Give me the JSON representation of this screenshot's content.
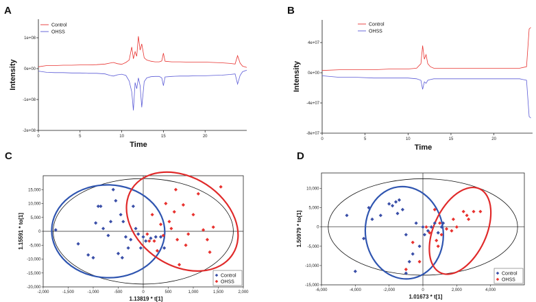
{
  "chart_data": [
    {
      "panel": "A",
      "type": "line",
      "xlabel": "Time",
      "ylabel": "Intensity",
      "xlim": [
        0,
        25
      ],
      "ylim": [
        -200000000,
        160000000
      ],
      "xticks": [
        0,
        5,
        10,
        15,
        20
      ],
      "xtick_labels": [
        "0",
        "5",
        "10",
        "15",
        "20"
      ],
      "yticks": [
        -200000000,
        -100000000,
        0,
        100000000
      ],
      "ytick_labels": [
        "-2e+08",
        "-1e+08",
        "0e+00",
        "1e+08"
      ],
      "legend": "top-left",
      "series": [
        {
          "name": "Control",
          "color": "#e8322f",
          "x": [
            0,
            1,
            2,
            3,
            4,
            5,
            6,
            7,
            8,
            8.6,
            9,
            9.5,
            10,
            10.5,
            10.9,
            11.2,
            11.4,
            11.6,
            11.8,
            12.0,
            12.2,
            12.4,
            12.7,
            13,
            13.5,
            14,
            14.5,
            14.8,
            15.0,
            15.2,
            16,
            17,
            18,
            19,
            20,
            21,
            22,
            23,
            23.6,
            23.9,
            24.2,
            24.5,
            25
          ],
          "y": [
            6000000,
            10000000,
            10000000,
            11000000,
            11000000,
            12000000,
            12000000,
            13000000,
            15000000,
            18000000,
            20000000,
            16000000,
            14000000,
            20000000,
            28000000,
            70000000,
            32000000,
            55000000,
            40000000,
            105000000,
            60000000,
            80000000,
            35000000,
            28000000,
            24000000,
            22000000,
            22000000,
            25000000,
            50000000,
            24000000,
            22000000,
            22000000,
            21000000,
            21000000,
            21000000,
            20000000,
            19000000,
            17000000,
            15000000,
            42000000,
            18000000,
            8000000,
            4000000
          ]
        },
        {
          "name": "OHSS",
          "color": "#5a5ad6",
          "x": [
            0,
            1,
            2,
            3,
            4,
            5,
            6,
            7,
            8,
            8.6,
            9,
            9.5,
            10,
            10.5,
            10.9,
            11.2,
            11.4,
            11.6,
            11.8,
            12.0,
            12.2,
            12.4,
            12.7,
            13,
            13.5,
            14,
            14.5,
            14.8,
            15.0,
            15.2,
            16,
            17,
            18,
            19,
            20,
            21,
            22,
            23,
            23.6,
            23.9,
            24.2,
            24.5,
            25
          ],
          "y": [
            -8000000,
            -12000000,
            -13000000,
            -13000000,
            -14000000,
            -14000000,
            -15000000,
            -15000000,
            -17000000,
            -22000000,
            -24000000,
            -20000000,
            -18000000,
            -22000000,
            -40000000,
            -75000000,
            -135000000,
            -45000000,
            -65000000,
            -30000000,
            -55000000,
            -125000000,
            -42000000,
            -30000000,
            -26000000,
            -25000000,
            -25000000,
            -30000000,
            -55000000,
            -27000000,
            -25000000,
            -24000000,
            -24000000,
            -23000000,
            -23000000,
            -22000000,
            -21000000,
            -19000000,
            -17000000,
            -50000000,
            -22000000,
            -10000000,
            -5000000
          ]
        }
      ]
    },
    {
      "panel": "B",
      "type": "line",
      "xlabel": "Time",
      "ylabel": "Intensity",
      "xlim": [
        0,
        24.5
      ],
      "ylim": [
        -80000000,
        70000000
      ],
      "xticks": [
        0,
        5,
        10,
        15,
        20
      ],
      "xtick_labels": [
        "0",
        "5",
        "10",
        "15",
        "20"
      ],
      "yticks": [
        -80000000,
        -40000000,
        0,
        40000000
      ],
      "ytick_labels": [
        "-8e+07",
        "-4e+07",
        "0e+00",
        "4e+07"
      ],
      "legend": "top-right",
      "series": [
        {
          "name": "Control",
          "color": "#e8322f",
          "x": [
            0,
            2,
            4,
            6,
            8,
            10,
            11,
            11.5,
            11.7,
            11.9,
            12.1,
            12.3,
            12.6,
            13,
            15,
            17,
            19,
            21,
            23,
            23.8,
            24.1,
            24.3
          ],
          "y": [
            3000000,
            4000000,
            4000000,
            4000000,
            5000000,
            5000000,
            6000000,
            12000000,
            36000000,
            18000000,
            24000000,
            12000000,
            8000000,
            6000000,
            6000000,
            6000000,
            6000000,
            6000000,
            6000000,
            8000000,
            58000000,
            60000000
          ],
          "legend_hint": ""
        },
        {
          "name": "OHSS",
          "color": "#5a5ad6",
          "x": [
            0,
            2,
            4,
            6,
            8,
            10,
            11,
            11.5,
            11.7,
            11.9,
            12.1,
            12.3,
            12.6,
            13,
            15,
            17,
            19,
            21,
            23,
            23.8,
            24.1,
            24.3
          ],
          "y": [
            -4000000,
            -6000000,
            -6000000,
            -7000000,
            -7000000,
            -7000000,
            -8000000,
            -10000000,
            -22000000,
            -12000000,
            -14000000,
            -10000000,
            -9000000,
            -8000000,
            -8000000,
            -8000000,
            -8000000,
            -8000000,
            -8000000,
            -10000000,
            -58000000,
            -60000000
          ]
        }
      ]
    },
    {
      "panel": "C",
      "type": "scatter",
      "xlabel": "1.13819 * t[1]",
      "ylabel": "1.15591 * to[1]",
      "xlim": [
        -2000,
        2000
      ],
      "ylim": [
        -20000,
        20000
      ],
      "xticks": [
        -2000,
        -1500,
        -1000,
        -500,
        0,
        500,
        1000,
        1500,
        2000
      ],
      "xtick_labels": [
        "-2,000",
        "-1,500",
        "-1,000",
        "-500",
        "0",
        "500",
        "1,000",
        "1,500",
        "2,000"
      ],
      "yticks": [
        -20000,
        -15000,
        -10000,
        -5000,
        0,
        5000,
        10000,
        15000
      ],
      "ytick_labels": [
        "-20,000",
        "-15,000",
        "-10,000",
        "-5,000",
        "0",
        "5,000",
        "10,000",
        "15,000"
      ],
      "legend": "bottom-right",
      "series": [
        {
          "name": "Control",
          "color": "#3a4fa8",
          "marker": "diamond",
          "points": [
            [
              -1750,
              500
            ],
            [
              -1300,
              -4500
            ],
            [
              -1100,
              -8500
            ],
            [
              -1000,
              -9500
            ],
            [
              -950,
              3000
            ],
            [
              -900,
              9000
            ],
            [
              -850,
              9000
            ],
            [
              -800,
              1000
            ],
            [
              -700,
              -1500
            ],
            [
              -650,
              3500
            ],
            [
              -600,
              15000
            ],
            [
              -550,
              11000
            ],
            [
              -500,
              -8000
            ],
            [
              -450,
              6000
            ],
            [
              -400,
              3500
            ],
            [
              -350,
              -2000
            ],
            [
              -300,
              -6000
            ],
            [
              -250,
              -3000
            ],
            [
              -200,
              9000
            ],
            [
              -150,
              1000
            ],
            [
              -100,
              -1000
            ],
            [
              -50,
              -6000
            ],
            [
              0,
              -2000
            ],
            [
              50,
              -3500
            ],
            [
              150,
              -2500
            ],
            [
              250,
              -2000
            ],
            [
              350,
              -2000
            ],
            [
              420,
              -6000
            ],
            [
              -420,
              -9500
            ]
          ]
        },
        {
          "name": "OHSS",
          "color": "#e8322f",
          "marker": "diamond",
          "points": [
            [
              80,
              -1000
            ],
            [
              120,
              -3500
            ],
            [
              180,
              6000
            ],
            [
              220,
              -3500
            ],
            [
              280,
              -7000
            ],
            [
              350,
              2500
            ],
            [
              400,
              -1500
            ],
            [
              450,
              10000
            ],
            [
              520,
              3500
            ],
            [
              560,
              1000
            ],
            [
              620,
              7000
            ],
            [
              680,
              -3000
            ],
            [
              720,
              -12000
            ],
            [
              800,
              9500
            ],
            [
              850,
              -5000
            ],
            [
              900,
              -1000
            ],
            [
              1000,
              6000
            ],
            [
              1100,
              13500
            ],
            [
              1200,
              500
            ],
            [
              1280,
              -3000
            ],
            [
              1330,
              -7500
            ],
            [
              1400,
              1500
            ],
            [
              1550,
              16000
            ],
            [
              650,
              15000
            ]
          ]
        }
      ],
      "ellipses": [
        {
          "name": "total",
          "color": "#111111",
          "cx": 0,
          "cy": 0,
          "rx": 1800,
          "ry": 19000
        },
        {
          "name": "Control",
          "color": "#2f55b0",
          "cx": -700,
          "cy": 0,
          "rx": 1130,
          "ry": 16700,
          "angle": 2
        },
        {
          "name": "OHSS",
          "color": "#e02a2a",
          "cx": 780,
          "cy": 3500,
          "rx": 1200,
          "ry": 15900,
          "angle": 33
        }
      ]
    },
    {
      "panel": "D",
      "type": "scatter",
      "xlabel": "1.01673 * t[1]",
      "ylabel": "1.50979 * to[1]",
      "xlim": [
        -6000,
        6000
      ],
      "ylim": [
        -15000,
        14000
      ],
      "xticks": [
        -6000,
        -4000,
        -2000,
        0,
        2000,
        4000
      ],
      "xtick_labels": [
        "-6,000",
        "-4,000",
        "-2,000",
        "0",
        "2,000",
        "4,000"
      ],
      "yticks": [
        -15000,
        -10000,
        -5000,
        0,
        5000,
        10000
      ],
      "ytick_labels": [
        "-15,000",
        "-10,000",
        "-5,000",
        "0",
        "5,000",
        "10,000"
      ],
      "legend": "bottom-right",
      "series": [
        {
          "name": "Control",
          "color": "#3a4fa8",
          "marker": "diamond",
          "points": [
            [
              -4500,
              3000
            ],
            [
              -4000,
              -11500
            ],
            [
              -3500,
              -3000
            ],
            [
              -3200,
              5000
            ],
            [
              -3000,
              2000
            ],
            [
              -2500,
              3000
            ],
            [
              -2000,
              6000
            ],
            [
              -1800,
              5500
            ],
            [
              -1600,
              6500
            ],
            [
              -1500,
              3500
            ],
            [
              -1400,
              7000
            ],
            [
              -1200,
              4500
            ],
            [
              -1000,
              -2000
            ],
            [
              -800,
              -9000
            ],
            [
              -600,
              -7000
            ],
            [
              -400,
              1000
            ],
            [
              -200,
              -5000
            ],
            [
              0,
              0
            ],
            [
              100,
              -2000
            ],
            [
              300,
              -1000
            ],
            [
              500,
              0
            ],
            [
              700,
              1000
            ],
            [
              900,
              -1500
            ],
            [
              1100,
              0
            ],
            [
              1200,
              1000
            ],
            [
              -1000,
              -12000
            ]
          ]
        },
        {
          "name": "OHSS",
          "color": "#e8322f",
          "marker": "diamond",
          "points": [
            [
              -1000,
              -11000
            ],
            [
              -600,
              -4000
            ],
            [
              -200,
              -9000
            ],
            [
              200,
              0
            ],
            [
              400,
              -1500
            ],
            [
              700,
              4500
            ],
            [
              800,
              -3500
            ],
            [
              900,
              -5000
            ],
            [
              1000,
              1000
            ],
            [
              1100,
              -2000
            ],
            [
              1400,
              -500
            ],
            [
              1700,
              -1000
            ],
            [
              1800,
              2000
            ],
            [
              2000,
              0
            ],
            [
              2400,
              4000
            ],
            [
              2600,
              3000
            ],
            [
              2700,
              2000
            ],
            [
              3000,
              4000
            ],
            [
              3400,
              4000
            ]
          ]
        }
      ],
      "ellipses": [
        {
          "name": "total",
          "color": "#111111",
          "cx": 0,
          "cy": 0,
          "rx": 5600,
          "ry": 12500
        },
        {
          "name": "Control",
          "color": "#2f55b0",
          "cx": -1100,
          "cy": -1500,
          "rx": 2300,
          "ry": 12000,
          "angle": -8
        },
        {
          "name": "OHSS",
          "color": "#e02a2a",
          "cx": 2200,
          "cy": -1000,
          "rx": 1550,
          "ry": 12000,
          "angle": 25
        }
      ]
    }
  ]
}
